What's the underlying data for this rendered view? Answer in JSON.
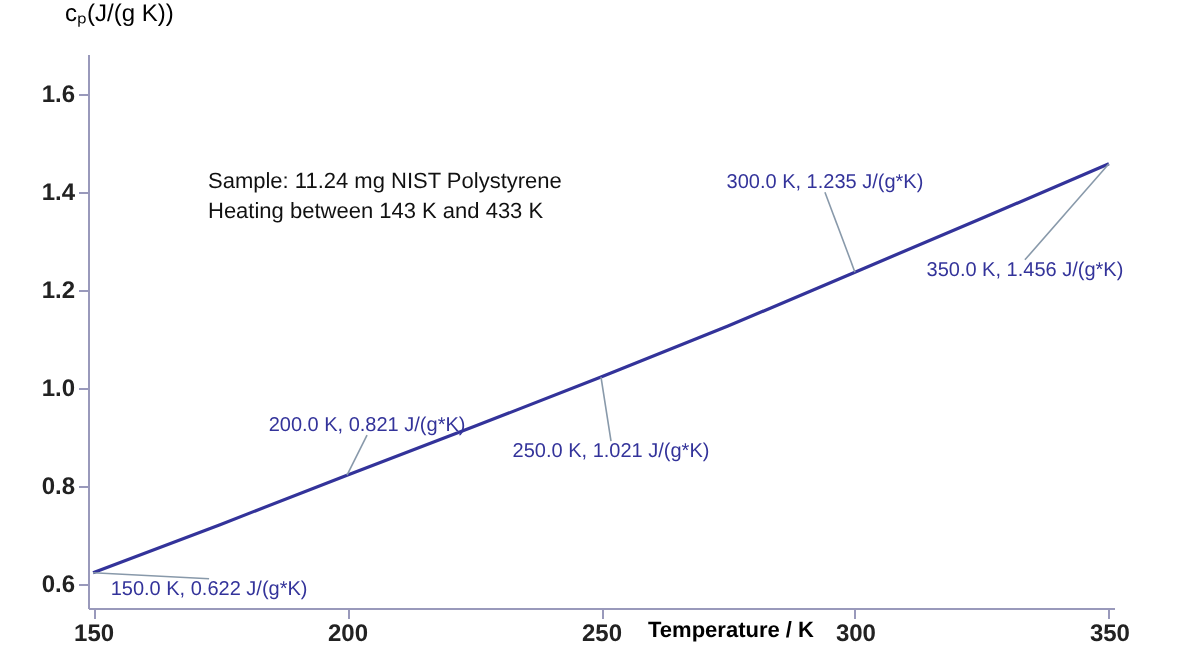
{
  "chart_data": {
    "type": "line",
    "xlabel": "Temperature / K",
    "ylabel": "cₚ(J/(g K))",
    "x": [
      150,
      175,
      200,
      225,
      250,
      275,
      300,
      325,
      350
    ],
    "series": [
      {
        "color": "#33339a",
        "values": [
          0.622,
          0.72,
          0.821,
          0.92,
          1.021,
          1.125,
          1.235,
          1.345,
          1.456
        ]
      }
    ],
    "xlim": [
      149,
      351
    ],
    "ylim": [
      0.55,
      1.68
    ],
    "xticks": [
      150,
      200,
      250,
      300,
      350
    ],
    "yticks": [
      0.6,
      0.8,
      {
        "value": 1,
        "label": "1.0"
      },
      1.2,
      1.4,
      1.6
    ],
    "grid": false,
    "marker": "none",
    "line_style": "solid",
    "annotations": [
      "Sample: 11.24 mg NIST Polystyrene",
      "Heating between 143 K and 433 K",
      {
        "text": "150.0 K, 0.622 J/(g*K)",
        "x": 150,
        "y": 0.622
      },
      {
        "text": "200.0 K, 0.821 J/(g*K)",
        "x": 200,
        "y": 0.821
      },
      {
        "text": "250.0 K, 1.021 J/(g*K)",
        "x": 250,
        "y": 1.021
      },
      {
        "text": "300.0 K, 1.235 J/(g*K)",
        "x": 300,
        "y": 1.235
      },
      {
        "text": "350.0 K, 1.456 J/(g*K)",
        "x": 350,
        "y": 1.456
      }
    ]
  }
}
